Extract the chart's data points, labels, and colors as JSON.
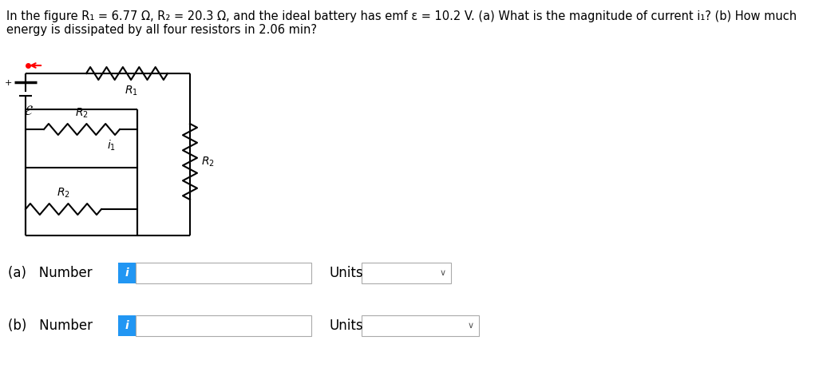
{
  "title_line1": "In the figure R₁ = 6.77 Ω, R₂ = 20.3 Ω, and the ideal battery has emf ε = 10.2 V. (a) What is the magnitude of current i₁? (b) How much",
  "title_line2": "energy is dissipated by all four resistors in 2.06 min?",
  "title_fontsize": 10.5,
  "bg_color": "#ffffff",
  "label_a": "(a)   Number",
  "label_b": "(b)   Number",
  "units_label": "Units",
  "info_button_color": "#2196F3",
  "info_text": "i",
  "chevron": "∨",
  "black": "#000000",
  "gray_border": "#bbbbbb",
  "red": "#cc0000",
  "circuit_lw": 1.5
}
